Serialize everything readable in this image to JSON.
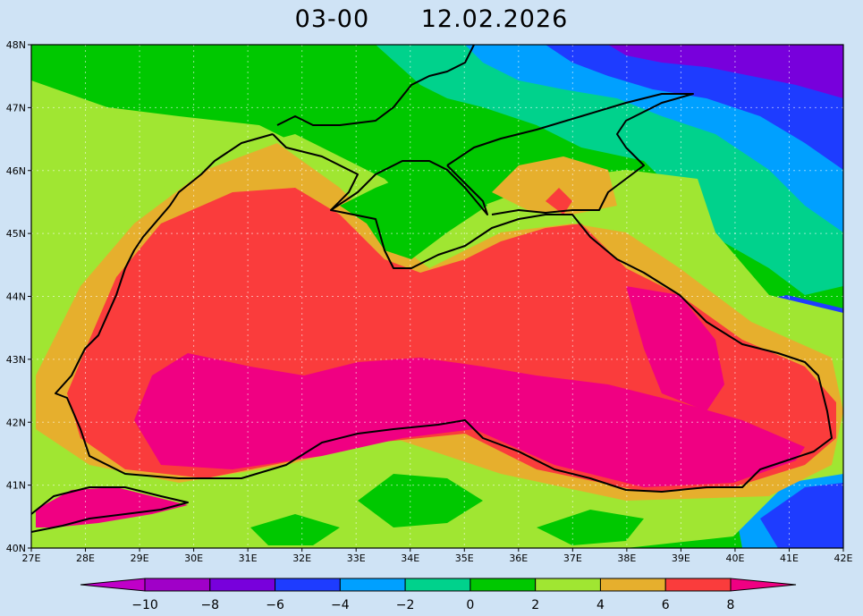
{
  "title": {
    "time": "03-00",
    "date": "12.02.2026"
  },
  "map": {
    "lon_ticks": [
      "27E",
      "28E",
      "29E",
      "30E",
      "31E",
      "32E",
      "33E",
      "34E",
      "35E",
      "36E",
      "37E",
      "38E",
      "39E",
      "40E",
      "41E",
      "42E"
    ],
    "lat_ticks": [
      "48N",
      "47N",
      "46N",
      "45N",
      "44N",
      "43N",
      "42N",
      "41N",
      "40N"
    ],
    "lon_range": [
      27,
      42
    ],
    "lat_range": [
      40,
      48
    ],
    "grid": true
  },
  "colorbar": {
    "labels": [
      "-10",
      "-8",
      "-6",
      "-4",
      "-2",
      "0",
      "2",
      "4",
      "6",
      "8"
    ],
    "levels": [
      -10,
      -8,
      -6,
      -4,
      -2,
      0,
      2,
      4,
      6,
      8
    ],
    "colors": [
      "#a000c8",
      "#7800dc",
      "#1e3cff",
      "#00a0ff",
      "#00d28c",
      "#00c800",
      "#a0e632",
      "#e6af2d",
      "#fa3c3c",
      "#f00082"
    ],
    "below_color": "#c000c8",
    "above_color": "#f00082"
  },
  "palette": {
    "purple": "#a000c8",
    "violet": "#7800dc",
    "blue": "#1e3cff",
    "skyblue": "#00a0ff",
    "teal": "#00d28c",
    "green": "#00c800",
    "lightgreen": "#a0e632",
    "orange": "#e6af2d",
    "red": "#fa3c3c",
    "magenta": "#f00082"
  }
}
